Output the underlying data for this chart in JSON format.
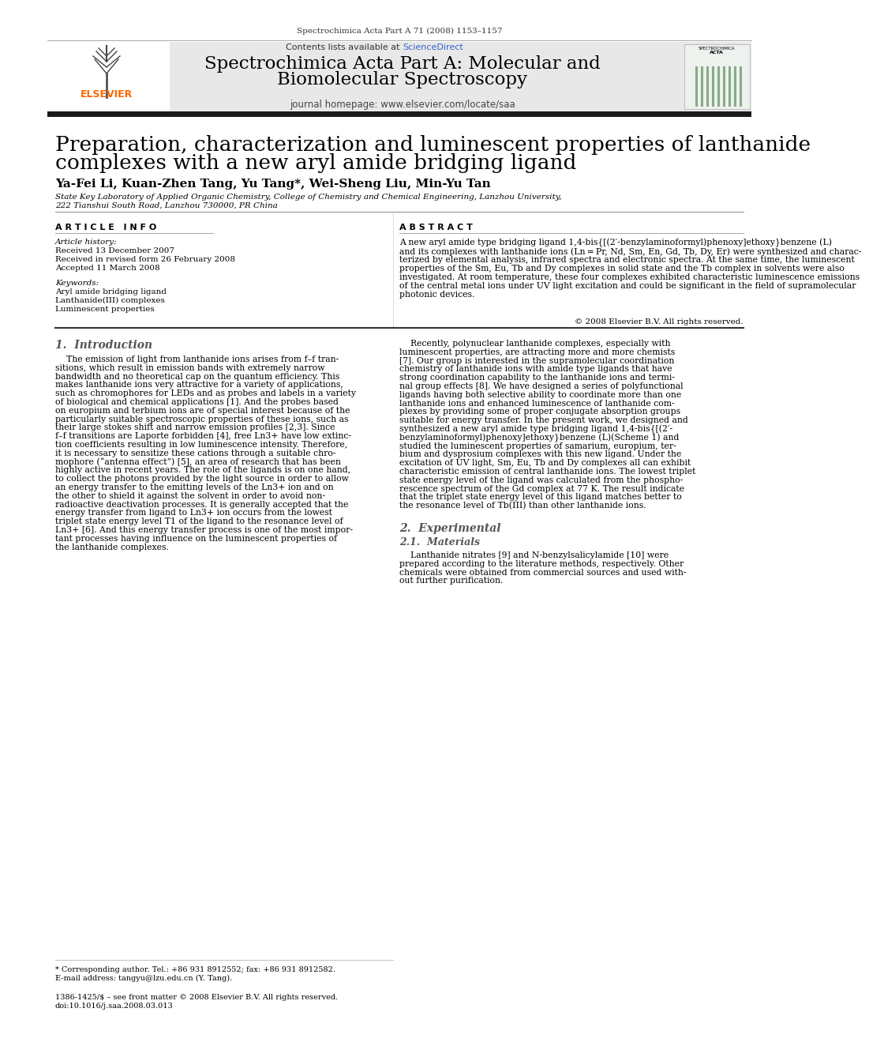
{
  "page_background": "#ffffff",
  "top_journal_line": "Spectrochimica Acta Part A 71 (2008) 1153–1157",
  "header_bg": "#e8e8e8",
  "header_title_line1": "Spectrochimica Acta Part A: Molecular and",
  "header_title_line2": "Biomolecular Spectroscopy",
  "header_contents_plain": "Contents lists available at ",
  "header_contents_link": "ScienceDirect",
  "header_homepage": "journal homepage: www.elsevier.com/locate/saa",
  "elsevier_color": "#ff6600",
  "sciencedirect_color": "#3366cc",
  "paper_title_line1": "Preparation, characterization and luminescent properties of lanthanide",
  "paper_title_line2": "complexes with a new aryl amide bridging ligand",
  "authors": "Ya-Fei Li, Kuan-Zhen Tang, Yu Tang*, Wei-Sheng Liu, Min-Yu Tan",
  "affiliation1": "State Key Laboratory of Applied Organic Chemistry, College of Chemistry and Chemical Engineering, Lanzhou University,",
  "affiliation2": "222 Tianshui South Road, Lanzhou 730000, PR China",
  "article_info_title": "A R T I C L E   I N F O",
  "abstract_title": "A B S T R A C T",
  "article_history_title": "Article history:",
  "received_date": "Received 13 December 2007",
  "revised_date": "Received in revised form 26 February 2008",
  "accepted_date": "Accepted 11 March 2008",
  "keywords_title": "Keywords:",
  "keyword1": "Aryl amide bridging ligand",
  "keyword2": "Lanthanide(III) complexes",
  "keyword3": "Luminescent properties",
  "copyright": "© 2008 Elsevier B.V. All rights reserved.",
  "section1_title": "1.  Introduction",
  "section2_title": "2.  Experimental",
  "section21_title": "2.1.  Materials",
  "footnote_star": "* Corresponding author. Tel.: +86 931 8912552; fax: +86 931 8912582.",
  "footnote_email": "E-mail address: tangyu@lzu.edu.cn (Y. Tang).",
  "footnote_issn": "1386-1425/$ – see front matter © 2008 Elsevier B.V. All rights reserved.",
  "footnote_doi": "doi:10.1016/j.saa.2008.03.013",
  "dark_bar_color": "#1a1a1a",
  "section_color": "#555555",
  "abstract_lines": [
    "A new aryl amide type bridging ligand 1,4-bis{[(2′-benzylaminoformyl)phenoxy]ethoxy}benzene (L)",
    "and its complexes with lanthanide ions (Ln = Pr, Nd, Sm, En, Gd, Tb, Dy, Er) were synthesized and charac-",
    "terized by elemental analysis, infrared spectra and electronic spectra. At the same time, the luminescent",
    "properties of the Sm, Eu, Tb and Dy complexes in solid state and the Tb complex in solvents were also",
    "investigated. At room temperature, these four complexes exhibited characteristic luminescence emissions",
    "of the central metal ions under UV light excitation and could be significant in the field of supramolecular",
    "photonic devices."
  ],
  "intro_left_lines": [
    "    The emission of light from lanthanide ions arises from f–f tran-",
    "sitions, which result in emission bands with extremely narrow",
    "bandwidth and no theoretical cap on the quantum efficiency. This",
    "makes lanthanide ions very attractive for a variety of applications,",
    "such as chromophores for LEDs and as probes and labels in a variety",
    "of biological and chemical applications [1]. And the probes based",
    "on europium and terbium ions are of special interest because of the",
    "particularly suitable spectroscopic properties of these ions, such as",
    "their large stokes shift and narrow emission profiles [2,3]. Since",
    "f–f transitions are Laporte forbidden [4], free Ln3+ have low extinc-",
    "tion coefficients resulting in low luminescence intensity. Therefore,",
    "it is necessary to sensitize these cations through a suitable chro-",
    "mophore (“antenna effect”) [5], an area of research that has been",
    "highly active in recent years. The role of the ligands is on one hand,",
    "to collect the photons provided by the light source in order to allow",
    "an energy transfer to the emitting levels of the Ln3+ ion and on",
    "the other to shield it against the solvent in order to avoid non-",
    "radioactive deactivation processes. It is generally accepted that the",
    "energy transfer from ligand to Ln3+ ion occurs from the lowest",
    "triplet state energy level T1 of the ligand to the resonance level of",
    "Ln3+ [6]. And this energy transfer process is one of the most impor-",
    "tant processes having influence on the luminescent properties of",
    "the lanthanide complexes."
  ],
  "intro_right_lines": [
    "    Recently, polynuclear lanthanide complexes, especially with",
    "luminescent properties, are attracting more and more chemists",
    "[7]. Our group is interested in the supramolecular coordination",
    "chemistry of lanthanide ions with amide type ligands that have",
    "strong coordination capability to the lanthanide ions and termi-",
    "nal group effects [8]. We have designed a series of polyfunctional",
    "ligands having both selective ability to coordinate more than one",
    "lanthanide ions and enhanced luminescence of lanthanide com-",
    "plexes by providing some of proper conjugate absorption groups",
    "suitable for energy transfer. In the present work, we designed and",
    "synthesized a new aryl amide type bridging ligand 1,4-bis{[(2′-",
    "benzylaminoformyl)phenoxy]ethoxy}benzene (L)(Scheme 1) and",
    "studied the luminescent properties of samarium, europium, ter-",
    "bium and dysprosium complexes with this new ligand. Under the",
    "excitation of UV light, Sm, Eu, Tb and Dy complexes all can exhibit",
    "characteristic emission of central lanthanide ions. The lowest triplet",
    "state energy level of the ligand was calculated from the phospho-",
    "rescence spectrum of the Gd complex at 77 K. The result indicate",
    "that the triplet state energy level of this ligand matches better to",
    "the resonance level of Tb(III) than other lanthanide ions."
  ],
  "materials_lines": [
    "    Lanthanide nitrates [9] and N-benzylsalicylamide [10] were",
    "prepared according to the literature methods, respectively. Other",
    "chemicals were obtained from commercial sources and used with-",
    "out further purification."
  ]
}
